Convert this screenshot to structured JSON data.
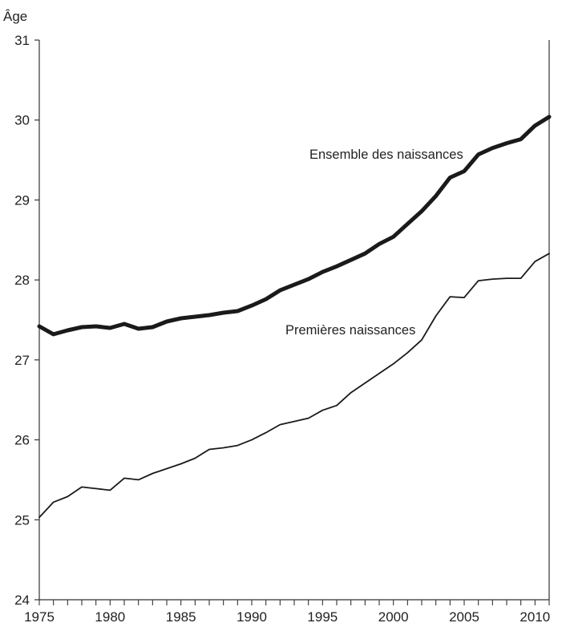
{
  "chart_data": {
    "type": "line",
    "title": "",
    "xlabel": "",
    "ylabel": "Âge",
    "xlim": [
      1975,
      2011
    ],
    "ylim": [
      24,
      31
    ],
    "xticks": [
      1975,
      1980,
      1985,
      1990,
      1995,
      2000,
      2005,
      2010
    ],
    "yticks": [
      24,
      25,
      26,
      27,
      28,
      29,
      30,
      31
    ],
    "grid": false,
    "legend": "none",
    "x": [
      1975,
      1976,
      1977,
      1978,
      1979,
      1980,
      1981,
      1982,
      1983,
      1984,
      1985,
      1986,
      1987,
      1988,
      1989,
      1990,
      1991,
      1992,
      1993,
      1994,
      1995,
      1996,
      1997,
      1998,
      1999,
      2000,
      2001,
      2002,
      2003,
      2004,
      2005,
      2006,
      2007,
      2008,
      2009,
      2010,
      2011
    ],
    "series": [
      {
        "name": "Ensemble des naissances",
        "color": "#1a1a1a",
        "values": [
          27.42,
          27.32,
          27.37,
          27.41,
          27.42,
          27.4,
          27.45,
          27.39,
          27.41,
          27.48,
          27.52,
          27.54,
          27.56,
          27.59,
          27.61,
          27.68,
          27.76,
          27.87,
          27.94,
          28.01,
          28.1,
          28.17,
          28.25,
          28.33,
          28.45,
          28.54,
          28.7,
          28.86,
          29.05,
          29.28,
          29.36,
          29.57,
          29.65,
          29.71,
          29.76,
          29.93,
          30.04
        ]
      },
      {
        "name": "Premières naissances",
        "color": "#1a1a1a",
        "values": [
          25.03,
          25.22,
          25.29,
          25.41,
          25.39,
          25.37,
          25.52,
          25.5,
          25.58,
          25.64,
          25.7,
          25.77,
          25.88,
          25.9,
          25.93,
          26.0,
          26.09,
          26.19,
          26.23,
          26.27,
          26.37,
          26.43,
          26.59,
          26.71,
          26.83,
          26.95,
          27.09,
          27.25,
          27.55,
          27.79,
          27.78,
          27.99,
          28.01,
          28.02,
          28.02,
          28.23,
          28.33
        ]
      }
    ]
  }
}
